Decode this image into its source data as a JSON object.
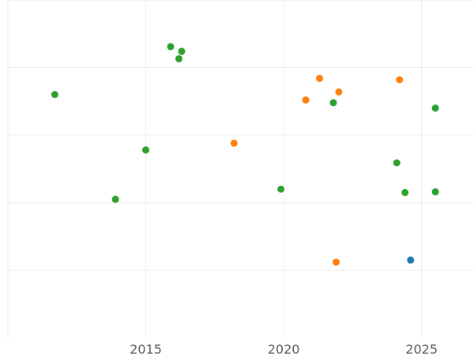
{
  "chart_data": {
    "type": "scatter",
    "title": "",
    "xlabel": "",
    "ylabel": "",
    "xlim": [
      2010.0,
      2026.9
    ],
    "ylim": [
      0.0,
      5.0
    ],
    "x_ticks": [
      2015,
      2020,
      2025
    ],
    "x_tick_labels": [
      "2015",
      "2020",
      "2025"
    ],
    "y_grid": [
      1,
      2,
      3,
      4,
      5
    ],
    "grid": true,
    "legend": "none",
    "series": [
      {
        "color": "#1f77b4",
        "points": [
          {
            "x": 2024.6,
            "y": 1.15
          }
        ]
      },
      {
        "color": "#ff7f0e",
        "points": [
          {
            "x": 2018.2,
            "y": 2.88
          },
          {
            "x": 2020.8,
            "y": 3.52
          },
          {
            "x": 2021.3,
            "y": 3.84
          },
          {
            "x": 2022.0,
            "y": 3.64
          },
          {
            "x": 2024.2,
            "y": 3.82
          },
          {
            "x": 2021.9,
            "y": 1.12
          }
        ]
      },
      {
        "color": "#2ca02c",
        "points": [
          {
            "x": 2011.7,
            "y": 3.6
          },
          {
            "x": 2013.9,
            "y": 2.05
          },
          {
            "x": 2015.0,
            "y": 2.78
          },
          {
            "x": 2015.9,
            "y": 4.31
          },
          {
            "x": 2016.2,
            "y": 4.13
          },
          {
            "x": 2016.3,
            "y": 4.24
          },
          {
            "x": 2019.9,
            "y": 2.2
          },
          {
            "x": 2021.8,
            "y": 3.48
          },
          {
            "x": 2024.1,
            "y": 2.59
          },
          {
            "x": 2024.4,
            "y": 2.15
          },
          {
            "x": 2025.5,
            "y": 3.4
          },
          {
            "x": 2025.5,
            "y": 2.16
          }
        ]
      }
    ]
  }
}
